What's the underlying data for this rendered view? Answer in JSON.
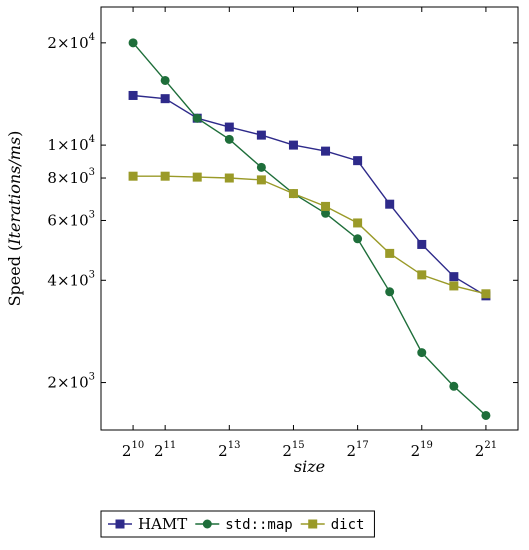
{
  "chart_data": {
    "type": "line",
    "xscale": "log2",
    "yscale": "log",
    "xlabel": "size",
    "ylabel_prefix": "Speed (",
    "ylabel_italic": "Iterations/ms",
    "ylabel_suffix": ")",
    "xlim_exponents": [
      9.0,
      22.0
    ],
    "ylim": [
      1450,
      25500
    ],
    "x_ticks": [
      {
        "base": "2",
        "exp": "10",
        "value_exp": 10
      },
      {
        "base": "2",
        "exp": "11",
        "value_exp": 11
      },
      {
        "base": "2",
        "exp": "13",
        "value_exp": 13
      },
      {
        "base": "2",
        "exp": "15",
        "value_exp": 15
      },
      {
        "base": "2",
        "exp": "17",
        "value_exp": 17
      },
      {
        "base": "2",
        "exp": "19",
        "value_exp": 19
      },
      {
        "base": "2",
        "exp": "21",
        "value_exp": 21
      }
    ],
    "y_ticks": [
      {
        "mant": "2×10",
        "exp": "3",
        "value": 2000
      },
      {
        "mant": "4×10",
        "exp": "3",
        "value": 4000
      },
      {
        "mant": "6×10",
        "exp": "3",
        "value": 6000
      },
      {
        "mant": "8×10",
        "exp": "3",
        "value": 8000
      },
      {
        "mant": "1×10",
        "exp": "4",
        "value": 10000
      },
      {
        "mant": "2×10",
        "exp": "4",
        "value": 20000
      }
    ],
    "x_exponents": [
      10,
      11,
      12,
      13,
      14,
      15,
      16,
      17,
      18,
      19,
      20,
      21
    ],
    "series": [
      {
        "name": "HAMT",
        "color": "#2e2a8a",
        "marker": "square",
        "values": [
          14000,
          13700,
          12000,
          11300,
          10700,
          10000,
          9600,
          9000,
          6700,
          5100,
          4100,
          3600
        ]
      },
      {
        "name": "std::map",
        "color": "#1e6e3a",
        "marker": "circle",
        "values": [
          20000,
          15500,
          12000,
          10400,
          8600,
          7200,
          6300,
          5300,
          3700,
          2450,
          1950,
          1600
        ]
      },
      {
        "name": "dict",
        "color": "#9a9a28",
        "marker": "square",
        "values": [
          8100,
          8100,
          8050,
          8000,
          7900,
          7200,
          6600,
          5900,
          4800,
          4150,
          3850,
          3650
        ]
      }
    ],
    "legend_position": "bottom"
  }
}
